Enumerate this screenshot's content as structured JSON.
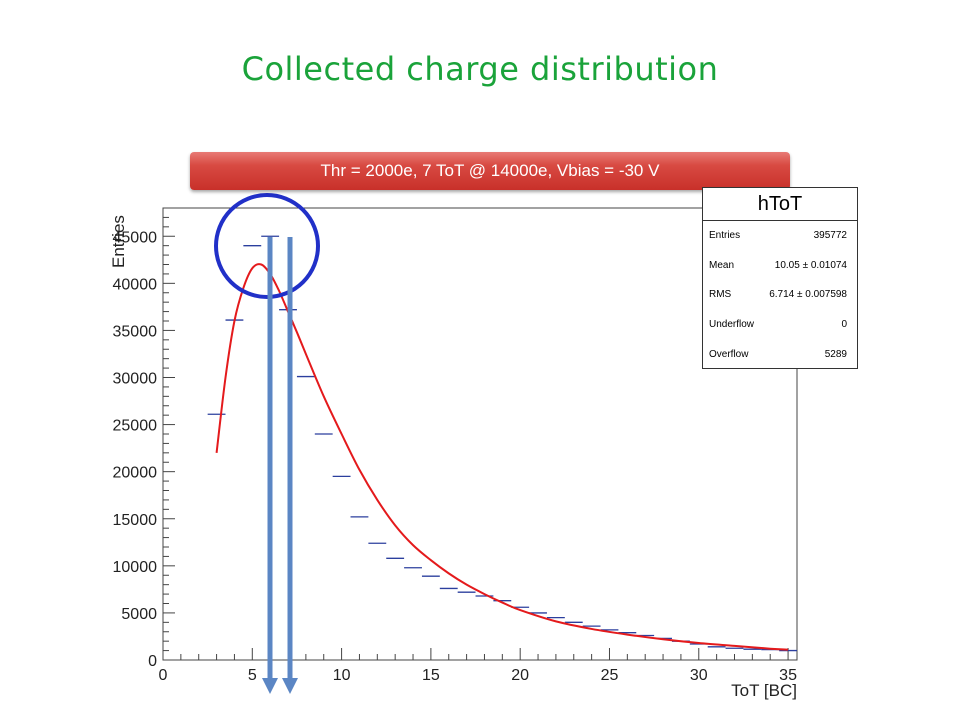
{
  "slide": {
    "title": "Collected charge distribution",
    "banner": "Thr = 2000e, 7 ToT @ 14000e, Vbias = -30 V"
  },
  "stats": {
    "title": "hToT",
    "rows": [
      {
        "label": "Entries",
        "value": "395772"
      },
      {
        "label": "Mean",
        "value": "10.05 ±  0.01074"
      },
      {
        "label": "RMS",
        "value": "6.714 ±  0.007598"
      },
      {
        "label": "Underflow",
        "value": "0"
      },
      {
        "label": "Overflow",
        "value": "5289"
      }
    ]
  },
  "colors": {
    "title": "#1aa33a",
    "histogram": "#2b3f9e",
    "fit": "#e41a1c",
    "circle": "#2130c8",
    "arrows": "#5b86c4",
    "banner": "#c8302a"
  },
  "chart_data": {
    "type": "scatter",
    "title": "",
    "xlabel": "ToT [BC]",
    "ylabel": "Entries",
    "xlim": [
      0,
      35.5
    ],
    "ylim": [
      0,
      48000
    ],
    "xticks": [
      0,
      5,
      10,
      15,
      20,
      25,
      30,
      35
    ],
    "yticks": [
      0,
      5000,
      10000,
      15000,
      20000,
      25000,
      30000,
      35000,
      40000,
      45000
    ],
    "grid": false,
    "series": [
      {
        "style": "histogram points",
        "x": [
          3,
          4,
          5,
          6,
          7,
          8,
          9,
          10,
          11,
          12,
          13,
          14,
          15,
          16,
          17,
          18,
          19,
          20,
          21,
          22,
          23,
          24,
          25,
          26,
          27,
          28,
          29,
          30,
          31,
          32,
          33,
          34,
          35
        ],
        "values": [
          26100,
          36100,
          44000,
          45000,
          37200,
          30100,
          24000,
          19500,
          15200,
          12400,
          10800,
          9800,
          8900,
          7600,
          7200,
          6800,
          6300,
          5600,
          5000,
          4500,
          4000,
          3600,
          3200,
          2900,
          2600,
          2300,
          2000,
          1700,
          1400,
          1250,
          1150,
          1100,
          1000
        ]
      },
      {
        "style": "fit curve",
        "x": [
          3.0,
          3.5,
          4.0,
          4.5,
          5.0,
          5.5,
          6.0,
          6.5,
          7.0,
          7.5,
          8.0,
          9.0,
          10.0,
          11.0,
          12.0,
          13.0,
          14.0,
          15.0,
          16.0,
          17.0,
          18.0,
          19.0,
          20.0,
          22.0,
          24.0,
          26.0,
          28.0,
          30.0,
          32.0,
          34.0,
          35.0
        ],
        "values": [
          22000,
          30000,
          36000,
          39500,
          41600,
          42000,
          41000,
          39200,
          37000,
          34800,
          32500,
          28000,
          24000,
          20200,
          17000,
          14300,
          12200,
          10600,
          9200,
          8000,
          7000,
          6100,
          5300,
          4100,
          3300,
          2700,
          2200,
          1800,
          1500,
          1200,
          1100
        ]
      }
    ]
  }
}
